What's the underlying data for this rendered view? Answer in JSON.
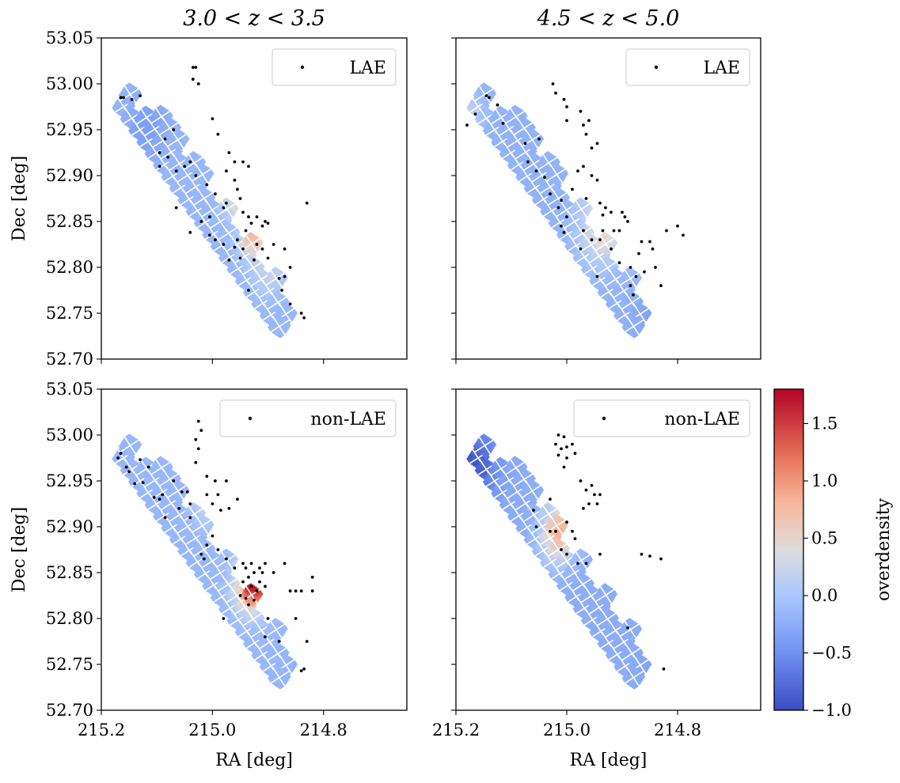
{
  "chart_data": {
    "type": "scatter",
    "description_kind": "2x2 grid of overdensity maps with source positions",
    "colorbar": {
      "label": "overdensity",
      "range": [
        -1.0,
        1.8
      ],
      "ticks": [
        -1.0,
        -0.5,
        0.0,
        0.5,
        1.0,
        1.5
      ],
      "tick_labels": [
        "−1.0",
        "−0.5",
        "0.0",
        "0.5",
        "1.0",
        "1.5"
      ],
      "colormap": "coolwarm",
      "stops": [
        {
          "v": -1.0,
          "color": "#3b4cc0"
        },
        {
          "v": -0.5,
          "color": "#6f92f3"
        },
        {
          "v": 0.0,
          "color": "#aac7fd"
        },
        {
          "v": 0.4,
          "color": "#dddcdc"
        },
        {
          "v": 0.8,
          "color": "#f7b89c"
        },
        {
          "v": 1.2,
          "color": "#e7745b"
        },
        {
          "v": 1.8,
          "color": "#b40426"
        }
      ]
    },
    "x_axis": {
      "label": "RA [deg]",
      "range": [
        215.2,
        214.65
      ],
      "ticks": [
        215.2,
        215.0,
        214.8
      ],
      "tick_labels": [
        "215.2",
        "215.0",
        "214.8"
      ]
    },
    "y_axis": {
      "label": "Dec [deg]",
      "range": [
        52.7,
        53.05
      ],
      "ticks": [
        52.7,
        52.75,
        52.8,
        52.85,
        52.9,
        52.95,
        53.0,
        53.05
      ],
      "tick_labels": [
        "52.70",
        "52.75",
        "52.80",
        "52.85",
        "52.90",
        "52.95",
        "53.00",
        "53.05"
      ]
    },
    "panels": [
      {
        "column_title": "3.0 < z < 3.5",
        "legend": "LAE",
        "overdensity_blobs": [
          {
            "ra": 214.955,
            "dec": 52.88,
            "sig": 0.018,
            "amp": 0.9
          },
          {
            "ra": 214.93,
            "dec": 52.835,
            "sig": 0.016,
            "amp": 0.85
          },
          {
            "ra": 214.9,
            "dec": 52.8,
            "sig": 0.02,
            "amp": 0.4
          },
          {
            "ra": 215.12,
            "dec": 52.955,
            "sig": 0.025,
            "amp": -0.25
          }
        ],
        "background": -0.15,
        "points": [
          [
            215.165,
            52.985
          ],
          [
            215.16,
            52.985
          ],
          [
            215.145,
            52.983
          ],
          [
            215.13,
            52.987
          ],
          [
            215.035,
            53.018
          ],
          [
            215.03,
            53.018
          ],
          [
            215.035,
            53.005
          ],
          [
            215.025,
            53.0
          ],
          [
            215.0,
            52.962
          ],
          [
            215.07,
            52.95
          ],
          [
            215.085,
            52.94
          ],
          [
            215.095,
            52.925
          ],
          [
            215.08,
            52.92
          ],
          [
            215.095,
            52.91
          ],
          [
            215.065,
            52.905
          ],
          [
            215.05,
            52.91
          ],
          [
            215.04,
            52.915
          ],
          [
            215.03,
            52.9
          ],
          [
            215.01,
            52.89
          ],
          [
            214.995,
            52.88
          ],
          [
            214.975,
            52.905
          ],
          [
            214.97,
            52.925
          ],
          [
            214.96,
            52.915
          ],
          [
            214.945,
            52.915
          ],
          [
            214.935,
            52.91
          ],
          [
            214.96,
            52.895
          ],
          [
            214.955,
            52.885
          ],
          [
            214.95,
            52.875
          ],
          [
            214.975,
            52.87
          ],
          [
            214.98,
            52.865
          ],
          [
            214.945,
            52.86
          ],
          [
            214.935,
            52.855
          ],
          [
            214.92,
            52.855
          ],
          [
            214.905,
            52.85
          ],
          [
            214.91,
            52.845
          ],
          [
            214.9,
            52.848
          ],
          [
            214.93,
            52.848
          ],
          [
            214.94,
            52.84
          ],
          [
            214.955,
            52.83
          ],
          [
            214.96,
            52.822
          ],
          [
            214.945,
            52.82
          ],
          [
            214.92,
            52.825
          ],
          [
            214.91,
            52.82
          ],
          [
            214.89,
            52.825
          ],
          [
            214.87,
            52.82
          ],
          [
            214.86,
            52.8
          ],
          [
            214.87,
            52.79
          ],
          [
            214.88,
            52.788
          ],
          [
            214.9,
            52.81
          ],
          [
            214.925,
            52.808
          ],
          [
            214.95,
            52.81
          ],
          [
            214.97,
            52.808
          ],
          [
            214.98,
            52.825
          ],
          [
            214.995,
            52.83
          ],
          [
            215.005,
            52.835
          ],
          [
            215.04,
            52.838
          ],
          [
            215.065,
            52.865
          ],
          [
            215.02,
            52.85
          ],
          [
            215.005,
            52.855
          ],
          [
            214.86,
            52.76
          ],
          [
            214.84,
            52.75
          ],
          [
            214.835,
            52.745
          ],
          [
            214.875,
            52.775
          ],
          [
            214.935,
            52.775
          ],
          [
            214.83,
            52.87
          ],
          [
            214.99,
            52.945
          ]
        ]
      },
      {
        "column_title": "4.5 < z < 5.0",
        "legend": "LAE",
        "overdensity_blobs": [
          {
            "ra": 214.935,
            "dec": 52.85,
            "sig": 0.03,
            "amp": 0.8
          },
          {
            "ra": 215.17,
            "dec": 52.97,
            "sig": 0.015,
            "amp": 0.35
          },
          {
            "ra": 214.8,
            "dec": 52.76,
            "sig": 0.035,
            "amp": -0.65
          },
          {
            "ra": 214.86,
            "dec": 52.81,
            "sig": 0.02,
            "amp": 0.25
          }
        ],
        "background": -0.2,
        "points": [
          [
            215.18,
            52.955
          ],
          [
            215.165,
            52.967
          ],
          [
            215.145,
            52.987
          ],
          [
            215.14,
            52.985
          ],
          [
            215.125,
            52.977
          ],
          [
            215.115,
            52.957
          ],
          [
            215.025,
            53.0
          ],
          [
            215.02,
            52.99
          ],
          [
            215.005,
            52.983
          ],
          [
            215.0,
            52.975
          ],
          [
            214.975,
            52.97
          ],
          [
            214.96,
            52.96
          ],
          [
            214.97,
            52.955
          ],
          [
            214.965,
            52.945
          ],
          [
            214.955,
            52.93
          ],
          [
            214.945,
            52.935
          ],
          [
            215.0,
            52.96
          ],
          [
            215.05,
            52.94
          ],
          [
            215.075,
            52.935
          ],
          [
            215.07,
            52.915
          ],
          [
            215.055,
            52.905
          ],
          [
            215.04,
            52.898
          ],
          [
            215.03,
            52.88
          ],
          [
            215.01,
            52.873
          ],
          [
            214.99,
            52.885
          ],
          [
            214.98,
            52.905
          ],
          [
            214.97,
            52.91
          ],
          [
            214.955,
            52.9
          ],
          [
            214.945,
            52.895
          ],
          [
            214.965,
            52.875
          ],
          [
            214.94,
            52.87
          ],
          [
            214.93,
            52.865
          ],
          [
            214.92,
            52.86
          ],
          [
            214.935,
            52.857
          ],
          [
            214.935,
            52.84
          ],
          [
            214.9,
            52.86
          ],
          [
            214.895,
            52.855
          ],
          [
            214.89,
            52.85
          ],
          [
            214.905,
            52.84
          ],
          [
            214.94,
            52.83
          ],
          [
            214.955,
            52.83
          ],
          [
            214.97,
            52.84
          ],
          [
            214.975,
            52.82
          ],
          [
            215.005,
            52.838
          ],
          [
            215.01,
            52.845
          ],
          [
            215.0,
            52.855
          ],
          [
            215.015,
            52.865
          ],
          [
            214.92,
            52.82
          ],
          [
            214.905,
            52.805
          ],
          [
            214.885,
            52.8
          ],
          [
            214.87,
            52.815
          ],
          [
            214.865,
            52.828
          ],
          [
            214.85,
            52.828
          ],
          [
            214.845,
            52.82
          ],
          [
            214.84,
            52.8
          ],
          [
            214.83,
            52.78
          ],
          [
            214.875,
            52.79
          ],
          [
            214.885,
            52.78
          ],
          [
            214.86,
            52.795
          ],
          [
            214.82,
            52.84
          ],
          [
            214.8,
            52.845
          ],
          [
            214.79,
            52.835
          ],
          [
            214.88,
            52.77
          ],
          [
            214.945,
            52.79
          ],
          [
            214.915,
            52.84
          ]
        ]
      },
      {
        "column_title": "",
        "legend": "non-LAE",
        "overdensity_blobs": [
          {
            "ra": 214.925,
            "dec": 52.845,
            "sig": 0.022,
            "amp": 2.2
          },
          {
            "ra": 215.01,
            "dec": 52.93,
            "sig": 0.018,
            "amp": 0.5
          },
          {
            "ra": 214.8,
            "dec": 52.76,
            "sig": 0.03,
            "amp": -0.3
          }
        ],
        "background": -0.15,
        "points": [
          [
            215.17,
            52.975
          ],
          [
            215.165,
            52.98
          ],
          [
            215.155,
            52.965
          ],
          [
            215.15,
            52.96
          ],
          [
            215.13,
            52.973
          ],
          [
            215.115,
            52.965
          ],
          [
            215.14,
            52.947
          ],
          [
            215.125,
            52.948
          ],
          [
            215.105,
            52.932
          ],
          [
            215.095,
            52.93
          ],
          [
            215.09,
            52.935
          ],
          [
            215.07,
            52.95
          ],
          [
            215.085,
            52.91
          ],
          [
            215.06,
            52.92
          ],
          [
            215.055,
            52.938
          ],
          [
            215.045,
            52.938
          ],
          [
            215.04,
            52.925
          ],
          [
            215.04,
            52.91
          ],
          [
            215.03,
            52.97
          ],
          [
            215.025,
            52.985
          ],
          [
            215.03,
            52.995
          ],
          [
            215.02,
            53.005
          ],
          [
            215.025,
            53.015
          ],
          [
            215.01,
            52.955
          ],
          [
            214.995,
            52.95
          ],
          [
            214.99,
            52.935
          ],
          [
            215.01,
            52.935
          ],
          [
            215.0,
            52.925
          ],
          [
            214.985,
            52.918
          ],
          [
            214.97,
            52.92
          ],
          [
            214.975,
            52.95
          ],
          [
            214.955,
            52.93
          ],
          [
            215.0,
            52.89
          ],
          [
            214.99,
            52.875
          ],
          [
            215.015,
            52.865
          ],
          [
            215.01,
            52.88
          ],
          [
            215.02,
            52.87
          ],
          [
            214.975,
            52.865
          ],
          [
            214.96,
            52.855
          ],
          [
            214.945,
            52.86
          ],
          [
            214.94,
            52.855
          ],
          [
            214.93,
            52.86
          ],
          [
            214.925,
            52.85
          ],
          [
            214.935,
            52.845
          ],
          [
            214.945,
            52.84
          ],
          [
            214.93,
            52.835
          ],
          [
            214.92,
            52.83
          ],
          [
            214.915,
            52.84
          ],
          [
            214.915,
            52.855
          ],
          [
            214.905,
            52.86
          ],
          [
            214.91,
            52.85
          ],
          [
            214.925,
            52.82
          ],
          [
            214.935,
            52.815
          ],
          [
            214.95,
            52.825
          ],
          [
            214.94,
            52.822
          ],
          [
            214.905,
            52.835
          ],
          [
            214.89,
            52.85
          ],
          [
            214.87,
            52.86
          ],
          [
            214.86,
            52.83
          ],
          [
            214.85,
            52.83
          ],
          [
            214.84,
            52.83
          ],
          [
            214.82,
            52.83
          ],
          [
            214.82,
            52.845
          ],
          [
            214.905,
            52.78
          ],
          [
            214.88,
            52.775
          ],
          [
            214.83,
            52.775
          ],
          [
            214.835,
            52.745
          ],
          [
            214.84,
            52.743
          ],
          [
            214.9,
            52.8
          ],
          [
            214.85,
            52.8
          ],
          [
            214.98,
            52.8
          ]
        ]
      },
      {
        "column_title": "",
        "legend": "non-LAE",
        "overdensity_blobs": [
          {
            "ra": 215.01,
            "dec": 52.99,
            "sig": 0.012,
            "amp": 2.4
          },
          {
            "ra": 214.96,
            "dec": 52.93,
            "sig": 0.02,
            "amp": 1.2
          },
          {
            "ra": 215.015,
            "dec": 52.895,
            "sig": 0.022,
            "amp": 1.1
          },
          {
            "ra": 214.86,
            "dec": 52.868,
            "sig": 0.016,
            "amp": 0.6
          },
          {
            "ra": 215.17,
            "dec": 52.965,
            "sig": 0.03,
            "amp": -0.7
          },
          {
            "ra": 214.8,
            "dec": 52.76,
            "sig": 0.03,
            "amp": -0.6
          }
        ],
        "background": -0.25,
        "points": [
          [
            215.015,
            53.0
          ],
          [
            215.005,
            52.998
          ],
          [
            215.02,
            52.99
          ],
          [
            215.01,
            52.985
          ],
          [
            215.0,
            52.987
          ],
          [
            215.015,
            52.978
          ],
          [
            215.0,
            52.975
          ],
          [
            214.99,
            52.99
          ],
          [
            214.985,
            52.98
          ],
          [
            215.005,
            52.965
          ],
          [
            214.975,
            52.95
          ],
          [
            214.965,
            52.94
          ],
          [
            214.955,
            52.945
          ],
          [
            214.95,
            52.935
          ],
          [
            214.94,
            52.935
          ],
          [
            214.96,
            52.925
          ],
          [
            214.945,
            52.925
          ],
          [
            214.97,
            52.92
          ],
          [
            215.03,
            52.93
          ],
          [
            215.06,
            52.918
          ],
          [
            215.055,
            52.9
          ],
          [
            215.03,
            52.895
          ],
          [
            215.02,
            52.895
          ],
          [
            215.0,
            52.905
          ],
          [
            214.99,
            52.895
          ],
          [
            214.985,
            52.887
          ],
          [
            215.01,
            52.875
          ],
          [
            215.0,
            52.87
          ],
          [
            214.98,
            52.86
          ],
          [
            214.865,
            52.87
          ],
          [
            214.85,
            52.868
          ],
          [
            214.83,
            52.865
          ],
          [
            214.965,
            52.86
          ],
          [
            214.94,
            52.87
          ],
          [
            214.89,
            52.79
          ],
          [
            214.825,
            52.745
          ]
        ]
      }
    ]
  }
}
